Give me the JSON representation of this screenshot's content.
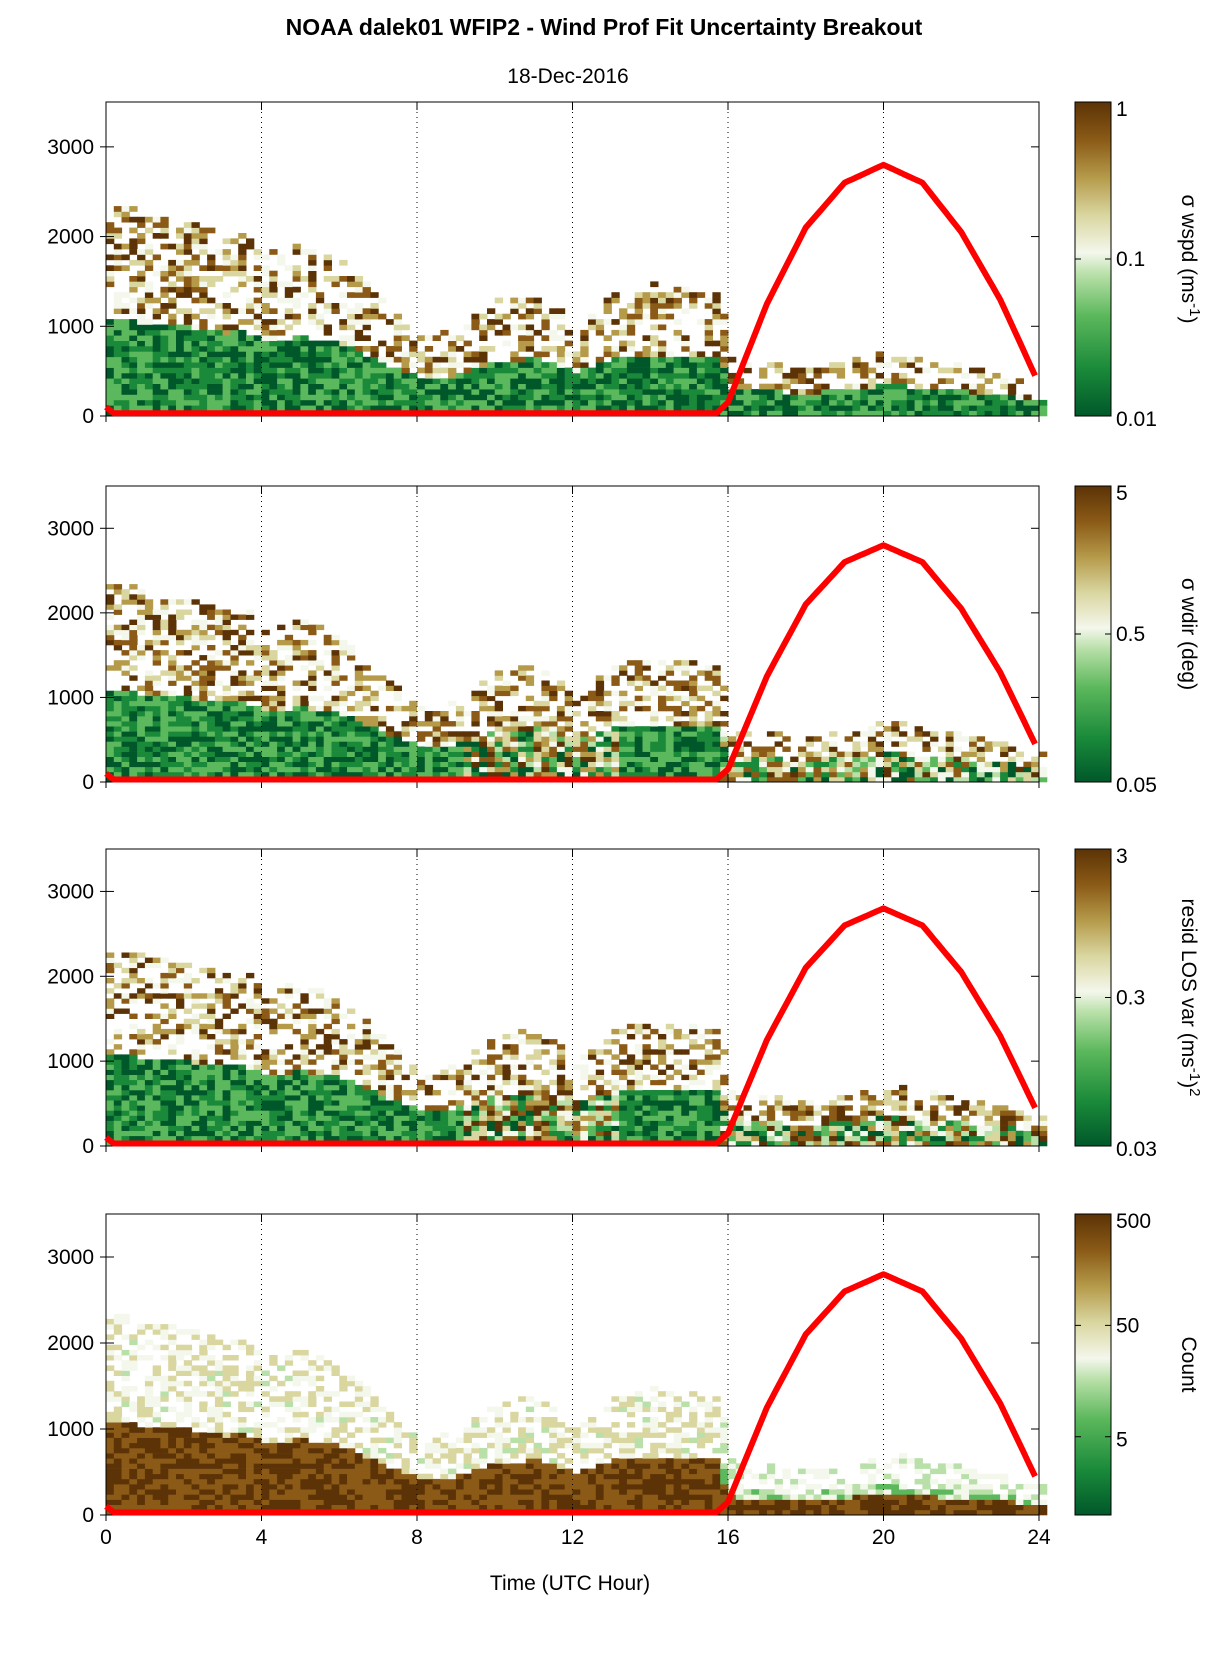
{
  "title": "NOAA dalek01 WFIP2 - Wind Prof Fit Uncertainty Breakout",
  "subtitle": "18-Dec-2016",
  "chart_data": {
    "type": "heatmap",
    "xlabel": "Time (UTC Hour)",
    "xlim": [
      0,
      24
    ],
    "ylim": [
      0,
      3500
    ],
    "x_ticks": [
      "0",
      "4",
      "8",
      "12",
      "16",
      "20",
      "24"
    ],
    "x_tick_values": [
      0,
      4,
      8,
      12,
      16,
      20,
      24
    ],
    "y_ticks": [
      "0",
      "1000",
      "2000",
      "3000"
    ],
    "y_tick_values": [
      0,
      1000,
      2000,
      3000
    ],
    "vertical_gridlines_hours": [
      4,
      8,
      12,
      16,
      20
    ],
    "colormap": [
      "#00582a",
      "#1a8a3a",
      "#5cb85c",
      "#b8e0a8",
      "#f4f7ec",
      "#d9d6a0",
      "#b59a4a",
      "#8a5a16",
      "#5c3306"
    ],
    "sun_curve_color": "#ff0000",
    "sun_curve": {
      "x": [
        0,
        0.2,
        15.7,
        16,
        17,
        18,
        19,
        20,
        21,
        22,
        23,
        23.9
      ],
      "y": [
        100,
        30,
        30,
        150,
        1250,
        2100,
        2600,
        2800,
        2600,
        2050,
        1300,
        450
      ]
    },
    "column_tops_m": {
      "x": [
        0,
        0.5,
        1,
        2,
        3,
        3.5,
        4,
        5,
        6,
        8,
        9,
        10,
        11,
        12,
        13,
        14,
        15.7,
        16,
        18,
        20,
        22,
        24
      ],
      "y": [
        2300,
        2350,
        2200,
        2150,
        2000,
        2050,
        1800,
        1900,
        1700,
        850,
        950,
        1300,
        1350,
        1000,
        1350,
        1450,
        1350,
        600,
        500,
        700,
        550,
        300
      ]
    },
    "panels": [
      {
        "colorbar_label": "σ wspd (ms",
        "colorbar_label_sup": "-1",
        "colorbar_label_end": ")",
        "colorbar_ticks": [
          "1",
          "0.1",
          "0.01"
        ],
        "colorbar_scale": "log",
        "colorbar_range": [
          0.01,
          1
        ]
      },
      {
        "colorbar_label": "σ wdir (deg)",
        "colorbar_label_sup": "",
        "colorbar_label_end": "",
        "colorbar_ticks": [
          "5",
          "0.5",
          "0.05"
        ],
        "colorbar_scale": "log",
        "colorbar_range": [
          0.05,
          5
        ]
      },
      {
        "colorbar_label": "resid LOS var (ms",
        "colorbar_label_sup": "-1",
        "colorbar_label_end": ")",
        "colorbar_label_sup2": "2",
        "colorbar_ticks": [
          "3",
          "0.3",
          "0.03"
        ],
        "colorbar_scale": "log",
        "colorbar_range": [
          0.03,
          3
        ]
      },
      {
        "colorbar_label": "Count",
        "colorbar_label_sup": "",
        "colorbar_label_end": "",
        "colorbar_ticks": [
          "500",
          "50",
          "5"
        ],
        "colorbar_scale": "log",
        "colorbar_range": [
          1,
          500
        ]
      }
    ]
  }
}
